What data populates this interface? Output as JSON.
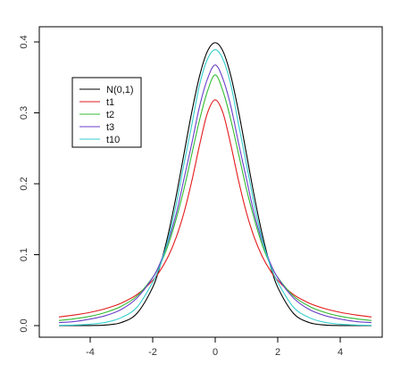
{
  "chart_data": {
    "type": "line",
    "xlim": [
      -5,
      5
    ],
    "ylim": [
      0,
      0.4
    ],
    "x_ticks": [
      "-4",
      "-2",
      "0",
      "2",
      "4"
    ],
    "y_ticks": [
      "0.0",
      "0.1",
      "0.2",
      "0.3",
      "0.4"
    ],
    "grid": false,
    "legend_position": "top-left",
    "x": [
      -5,
      -4.5,
      -4,
      -3.5,
      -3,
      -2.5,
      -2,
      -1.75,
      -1.5,
      -1.25,
      -1,
      -0.75,
      -0.5,
      -0.25,
      0,
      0.25,
      0.5,
      0.75,
      1,
      1.25,
      1.5,
      1.75,
      2,
      2.5,
      3,
      3.5,
      4,
      4.5,
      5
    ],
    "series": [
      {
        "name": "N(0,1)",
        "color": "#000000",
        "values": [
          1.5e-06,
          1.6e-05,
          0.000134,
          0.000873,
          0.00443,
          0.0175,
          0.054,
          0.0863,
          0.1295,
          0.1826,
          0.242,
          0.3011,
          0.3521,
          0.3867,
          0.3989,
          0.3867,
          0.3521,
          0.3011,
          0.242,
          0.1826,
          0.1295,
          0.0863,
          0.054,
          0.0175,
          0.00443,
          0.000873,
          0.000134,
          1.6e-05,
          1.5e-06
        ]
      },
      {
        "name": "t1",
        "color": "#e41a1c",
        "values": [
          0.01224,
          0.01498,
          0.01872,
          0.02404,
          0.03183,
          0.0439,
          0.06366,
          0.07835,
          0.09794,
          0.12434,
          0.15915,
          0.20372,
          0.25465,
          0.29958,
          0.31831,
          0.29958,
          0.25465,
          0.20372,
          0.15915,
          0.12434,
          0.09794,
          0.07835,
          0.06366,
          0.0439,
          0.03183,
          0.02404,
          0.01872,
          0.01498,
          0.01224
        ]
      },
      {
        "name": "t2",
        "color": "#33bb33",
        "values": [
          0.00712,
          0.0097,
          0.0131,
          0.0187,
          0.02741,
          0.04185,
          0.06804,
          0.08717,
          0.11436,
          0.1502,
          0.19245,
          0.2415,
          0.29,
          0.3303,
          0.35355,
          0.3303,
          0.29,
          0.2415,
          0.19245,
          0.1502,
          0.11436,
          0.08717,
          0.06804,
          0.04185,
          0.02741,
          0.0187,
          0.0131,
          0.0097,
          0.00712
        ]
      },
      {
        "name": "t3",
        "color": "#6a3fc9",
        "values": [
          0.00424,
          0.00577,
          0.00916,
          0.0142,
          0.02297,
          0.03921,
          0.06751,
          0.08956,
          0.1196,
          0.1572,
          0.20675,
          0.2566,
          0.3092,
          0.3476,
          0.36755,
          0.3476,
          0.3092,
          0.2566,
          0.20675,
          0.1572,
          0.1196,
          0.08956,
          0.06751,
          0.03921,
          0.02297,
          0.0142,
          0.00916,
          0.00577,
          0.00424
        ]
      },
      {
        "name": "t10",
        "color": "#33cccc",
        "values": [
          0.00039,
          0.00081,
          0.00203,
          0.0046,
          0.0114,
          0.0261,
          0.06114,
          0.086,
          0.1224,
          0.1705,
          0.2277,
          0.283,
          0.3397,
          0.3755,
          0.3891,
          0.3755,
          0.3397,
          0.283,
          0.2277,
          0.1705,
          0.1224,
          0.086,
          0.06114,
          0.0261,
          0.0114,
          0.0046,
          0.00203,
          0.00081,
          0.00039
        ]
      }
    ]
  }
}
